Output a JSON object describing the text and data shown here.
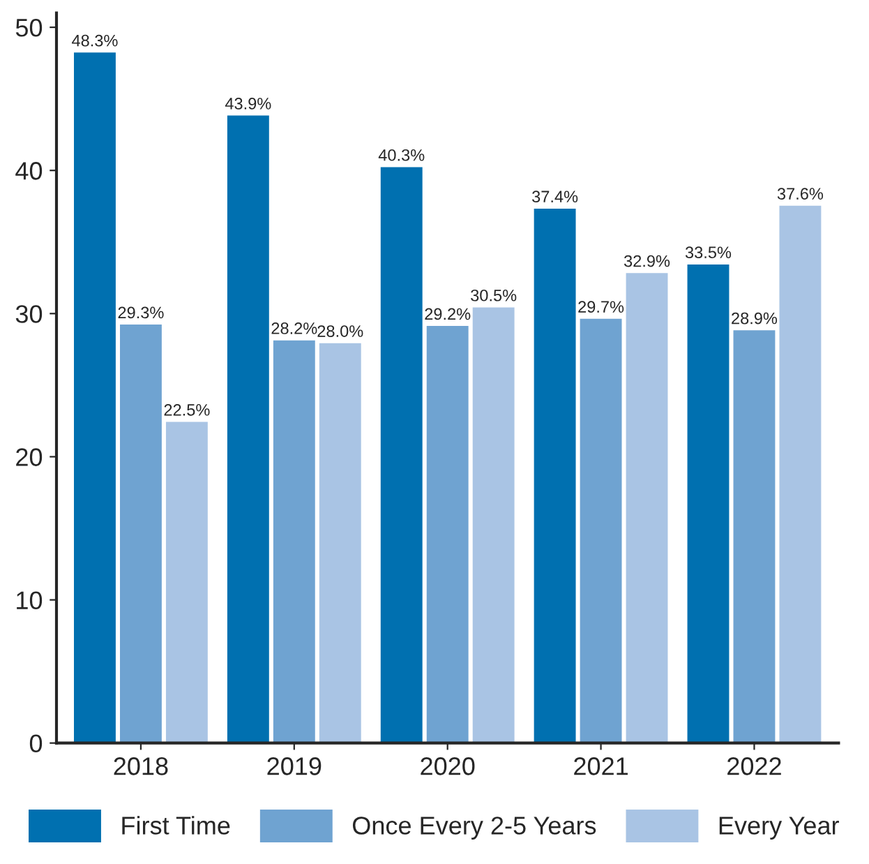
{
  "chart_data": {
    "type": "bar",
    "categories": [
      "2018",
      "2019",
      "2020",
      "2021",
      "2022"
    ],
    "series": [
      {
        "name": "First Time",
        "color": "#0070b0",
        "values": [
          48.3,
          43.9,
          40.3,
          37.4,
          33.5
        ],
        "value_labels": [
          "48.3%",
          "43.9%",
          "40.3%",
          "37.4%",
          "33.5%"
        ]
      },
      {
        "name": "Once Every 2-5 Years",
        "color": "#6fa3d1",
        "values": [
          29.3,
          28.2,
          29.2,
          29.7,
          28.9
        ],
        "value_labels": [
          "29.3%",
          "28.2%",
          "29.2%",
          "29.7%",
          "28.9%"
        ]
      },
      {
        "name": "Every Year",
        "color": "#a9c4e4",
        "values": [
          22.5,
          28.0,
          30.5,
          32.9,
          37.6
        ],
        "value_labels": [
          "22.5%",
          "28.0%",
          "30.5%",
          "32.9%",
          "37.6%"
        ]
      }
    ],
    "ylim": [
      0,
      51
    ],
    "yticks": [
      0,
      10,
      20,
      30,
      40,
      50
    ],
    "grid": false,
    "legend": "bottom"
  }
}
